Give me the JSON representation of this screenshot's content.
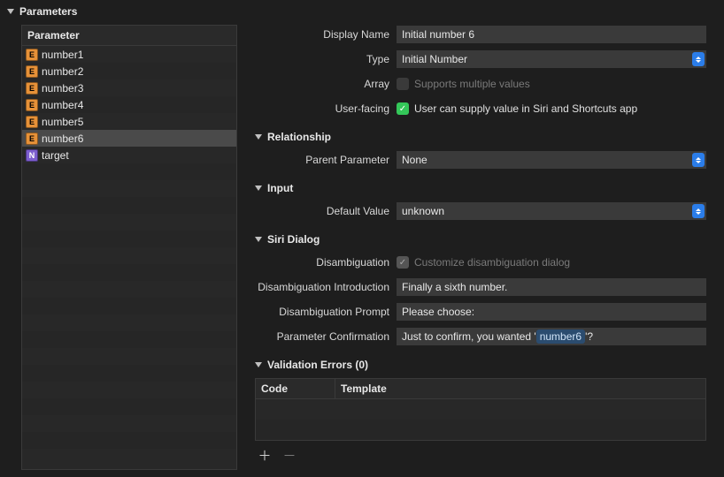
{
  "panel": {
    "title": "Parameters"
  },
  "paramTable": {
    "header": "Parameter",
    "rows": [
      {
        "icon": "E",
        "name": "number1",
        "selected": false
      },
      {
        "icon": "E",
        "name": "number2",
        "selected": false
      },
      {
        "icon": "E",
        "name": "number3",
        "selected": false
      },
      {
        "icon": "E",
        "name": "number4",
        "selected": false
      },
      {
        "icon": "E",
        "name": "number5",
        "selected": false
      },
      {
        "icon": "E",
        "name": "number6",
        "selected": true
      },
      {
        "icon": "N",
        "name": "target",
        "selected": false
      }
    ],
    "emptyRows": 17,
    "colors": {
      "E": "#e69138",
      "N": "#7c5dcf"
    }
  },
  "detail": {
    "fields": {
      "displayName": {
        "label": "Display Name",
        "value": "Initial number 6"
      },
      "type": {
        "label": "Type",
        "value": "Initial Number"
      },
      "array": {
        "label": "Array",
        "checkbox_label": "Supports multiple values",
        "checked": false
      },
      "userFacing": {
        "label": "User-facing",
        "checkbox_label": "User can supply value in Siri and Shortcuts app",
        "checked": true
      }
    },
    "relationship": {
      "title": "Relationship",
      "parent": {
        "label": "Parent Parameter",
        "value": "None"
      }
    },
    "input": {
      "title": "Input",
      "default": {
        "label": "Default Value",
        "value": "unknown"
      }
    },
    "siri": {
      "title": "Siri Dialog",
      "disambig": {
        "label": "Disambiguation",
        "checkbox_label": "Customize disambiguation dialog",
        "checked": true,
        "disabled": true
      },
      "intro": {
        "label": "Disambiguation Introduction",
        "value": "Finally a sixth number."
      },
      "prompt": {
        "label": "Disambiguation Prompt",
        "value": "Please choose:"
      },
      "confirm": {
        "label": "Parameter Confirmation",
        "prefix": "Just to confirm, you wanted ' ",
        "token": "number6",
        "suffix": " '?"
      }
    },
    "validation": {
      "title": "Validation Errors (0)",
      "cols": {
        "code": "Code",
        "template": "Template"
      }
    }
  }
}
